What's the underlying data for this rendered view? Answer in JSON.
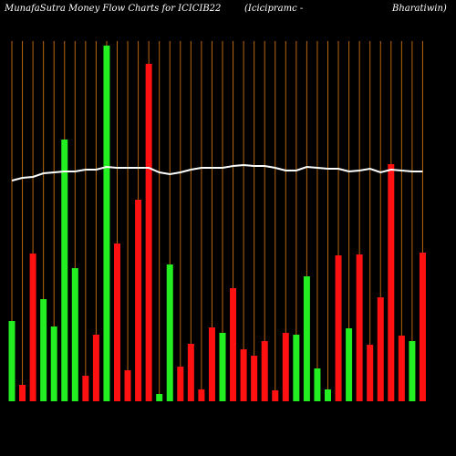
{
  "chart_data": {
    "type": "bar",
    "title": "MunafaSutra  Money Flow  Charts for ICICIB22",
    "subtitle": "(Icicipramc -",
    "subtitle_right": "Bharatiwin)",
    "ylim": [
      0,
      400
    ],
    "grid": true,
    "grid_color": "#b8650f",
    "up_color": "#22ee22",
    "down_color": "#ff1111",
    "line_color": "#ffffff",
    "series": [
      {
        "values": [
          88,
          18,
          162,
          112,
          82,
          287,
          146,
          28,
          73,
          390,
          173,
          34,
          221,
          370,
          8,
          150,
          38,
          63,
          13,
          81,
          75,
          124,
          57,
          50,
          66,
          12,
          75,
          73,
          137,
          36,
          13,
          160,
          80,
          161,
          62,
          114,
          260,
          72,
          66,
          163
        ],
        "direction": [
          "up",
          "down",
          "down",
          "up",
          "up",
          "up",
          "up",
          "down",
          "down",
          "up",
          "down",
          "down",
          "down",
          "down",
          "up",
          "up",
          "down",
          "down",
          "down",
          "down",
          "up",
          "down",
          "down",
          "down",
          "down",
          "down",
          "down",
          "up",
          "up",
          "up",
          "up",
          "down",
          "up",
          "down",
          "down",
          "down",
          "down",
          "down",
          "up",
          "down"
        ]
      },
      {
        "values": [
          242,
          245,
          246,
          250,
          251,
          252,
          252,
          254,
          254,
          257,
          256,
          256,
          256,
          256,
          251,
          249,
          251,
          254,
          256,
          256,
          256,
          258,
          259,
          258,
          258,
          256,
          253,
          253,
          257,
          256,
          255,
          255,
          252,
          253,
          255,
          251,
          254,
          253,
          252,
          252
        ]
      }
    ]
  }
}
